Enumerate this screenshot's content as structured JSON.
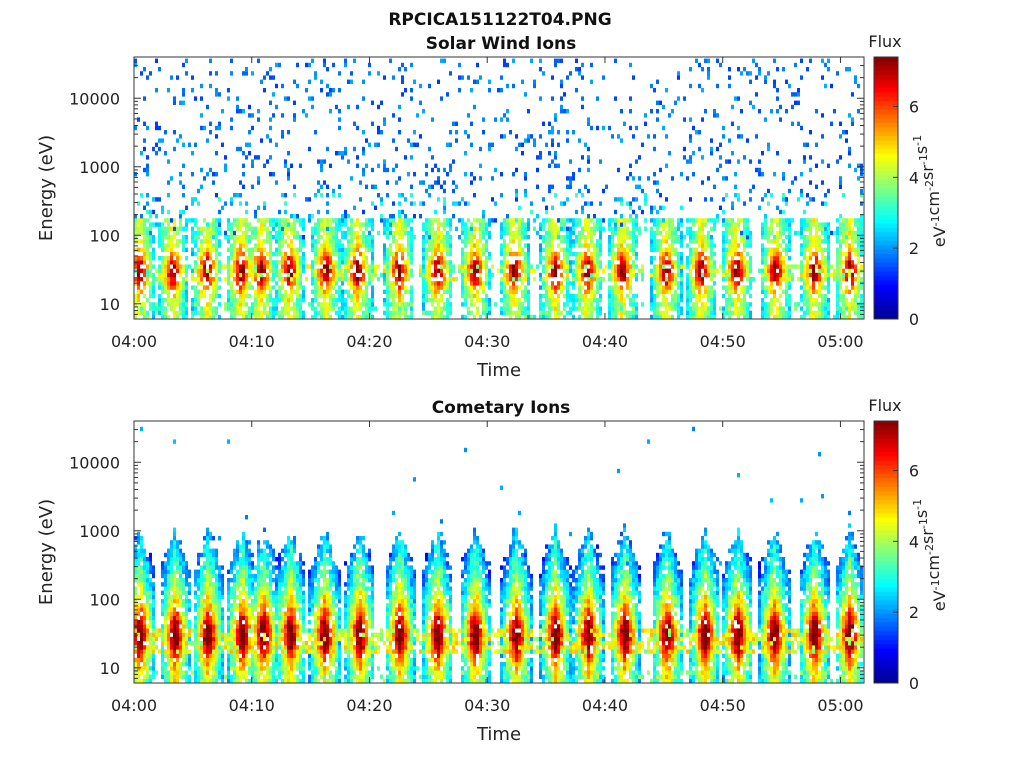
{
  "figure": {
    "title": "RPCICA151122T04.PNG"
  },
  "colormap": [
    "#00008f",
    "#0000ff",
    "#0080ff",
    "#00ffff",
    "#80ff80",
    "#ffff00",
    "#ff8000",
    "#ff0000",
    "#800000"
  ],
  "chart_data": [
    {
      "type": "heatmap",
      "title": "Solar Wind Ions",
      "xlabel": "Time",
      "ylabel": "Energy (eV)",
      "x_range_minutes": [
        0,
        62
      ],
      "x_ticks": [
        "04:00",
        "04:10",
        "04:20",
        "04:30",
        "04:40",
        "04:50",
        "05:00"
      ],
      "x_tick_minutes": [
        0,
        10,
        20,
        30,
        40,
        50,
        60
      ],
      "y_scale": "log",
      "y_range": [
        6,
        40000
      ],
      "y_ticks": [
        "10",
        "100",
        "1000",
        "10000"
      ],
      "y_tick_values": [
        10,
        100,
        1000,
        10000
      ],
      "colorbar": {
        "title": "Flux",
        "label": "eV-1cm-2sr-1s-1",
        "range": [
          0,
          7.4
        ],
        "ticks": [
          "0",
          "2",
          "4",
          "6"
        ],
        "tick_values": [
          0,
          2,
          4,
          6
        ]
      },
      "burst_minutes": [
        0.5,
        3.3,
        6.2,
        9.1,
        10.8,
        13.2,
        16.3,
        19.0,
        22.5,
        25.8,
        29.0,
        32.3,
        35.8,
        38.5,
        41.5,
        45.2,
        48.2,
        51.2,
        54.5,
        57.8,
        60.8
      ],
      "peak_energy_eV": 30,
      "sparse_background": true
    },
    {
      "type": "heatmap",
      "title": "Cometary Ions",
      "xlabel": "Time",
      "ylabel": "Energy (eV)",
      "x_range_minutes": [
        0,
        62
      ],
      "x_ticks": [
        "04:00",
        "04:10",
        "04:20",
        "04:30",
        "04:40",
        "04:50",
        "05:00"
      ],
      "x_tick_minutes": [
        0,
        10,
        20,
        30,
        40,
        50,
        60
      ],
      "y_scale": "log",
      "y_range": [
        6,
        40000
      ],
      "y_ticks": [
        "10",
        "100",
        "1000",
        "10000"
      ],
      "y_tick_values": [
        10,
        100,
        1000,
        10000
      ],
      "colorbar": {
        "title": "Flux",
        "label": "eV-1cm-2sr-1s-1",
        "range": [
          0,
          7.4
        ],
        "ticks": [
          "0",
          "2",
          "4",
          "6"
        ],
        "tick_values": [
          0,
          2,
          4,
          6
        ]
      },
      "burst_minutes": [
        0.5,
        3.5,
        6.3,
        9.2,
        11.0,
        13.3,
        16.2,
        19.2,
        22.6,
        25.8,
        29.0,
        32.5,
        35.8,
        38.6,
        41.7,
        45.3,
        48.5,
        51.3,
        54.4,
        57.8,
        60.8
      ],
      "peak_energy_eV": 30,
      "sparse_background": false
    }
  ]
}
